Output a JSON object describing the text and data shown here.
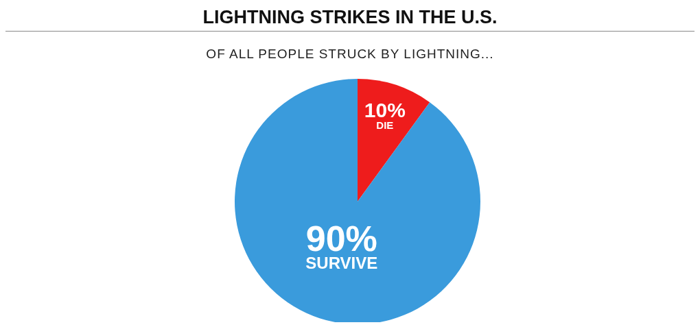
{
  "chart_data": {
    "type": "pie",
    "title": "LIGHTNING STRIKES IN THE U.S.",
    "subtitle": "OF ALL PEOPLE STRUCK BY LIGHTNING...",
    "categories": [
      "DIE",
      "SURVIVE"
    ],
    "values": [
      10,
      90
    ],
    "colors": [
      "#ee1c1c",
      "#3a9bdc"
    ],
    "value_labels": [
      "10%",
      "90%"
    ],
    "legend": false
  }
}
